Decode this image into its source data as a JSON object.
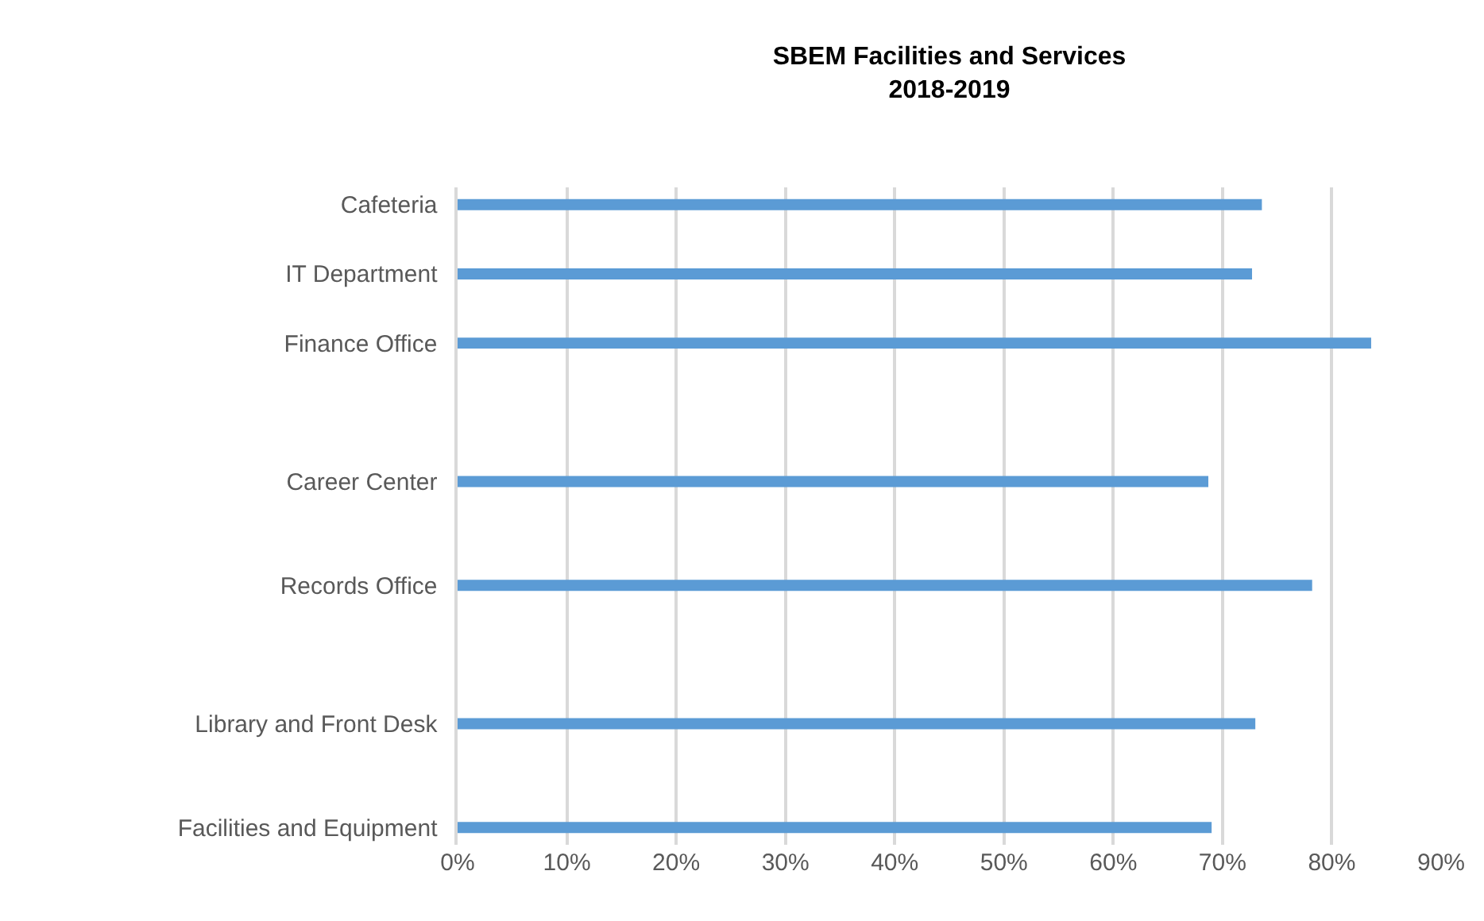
{
  "chart_data": {
    "type": "bar",
    "orientation": "horizontal",
    "title": "SBEM Facilities and Services\n2018-2019",
    "categories": [
      "Cafeteria",
      null,
      "IT Department",
      null,
      "Finance Office",
      null,
      null,
      null,
      "Career Center",
      null,
      null,
      "Records Office",
      null,
      null,
      null,
      "Library and Front Desk",
      null,
      null,
      "Facilities and Equipment"
    ],
    "values": [
      73.6,
      null,
      72.7,
      null,
      83.6,
      null,
      null,
      null,
      68.7,
      null,
      null,
      78.2,
      null,
      null,
      null,
      73.0,
      null,
      null,
      69.0
    ],
    "color": "#5b9bd5",
    "xlim": [
      0,
      90
    ],
    "xticks": [
      {
        "value": 0,
        "label": "0%"
      },
      {
        "value": 10,
        "label": "10%"
      },
      {
        "value": 20,
        "label": "20%"
      },
      {
        "value": 30,
        "label": "30%"
      },
      {
        "value": 40,
        "label": "40%"
      },
      {
        "value": 50,
        "label": "50%"
      },
      {
        "value": 60,
        "label": "60%"
      },
      {
        "value": 70,
        "label": "70%"
      },
      {
        "value": 80,
        "label": "80%"
      },
      {
        "value": 90,
        "label": "90%"
      }
    ],
    "grid": "x",
    "legend": false
  }
}
